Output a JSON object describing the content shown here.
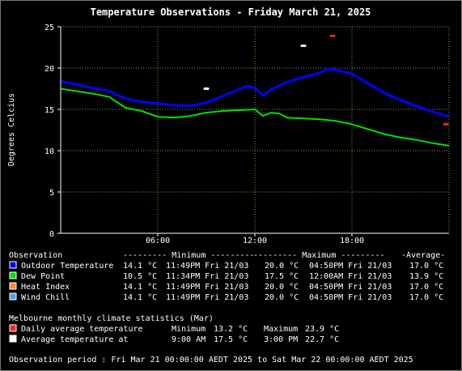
{
  "colors": {
    "background": "#000000",
    "grid": "#8a9a30",
    "outdoor": "#0000ff",
    "dew": "#00e000",
    "heat": "#ff8c1a",
    "wind": "#4fa3e0",
    "climate_avg": "#ff2020",
    "climate_daily": "#ffffff"
  },
  "chart_data": {
    "type": "line",
    "title": "Temperature Observations - Friday March 21, 2025",
    "ylabel": "Degrees Celcius",
    "xlabel": "",
    "ylim": [
      0,
      25
    ],
    "xlim_hours": [
      0,
      24
    ],
    "yticks": [
      0,
      5,
      10,
      15,
      20,
      25
    ],
    "xticks": [
      {
        "h": 6,
        "label": "06:00"
      },
      {
        "h": 12,
        "label": "12:00"
      },
      {
        "h": 18,
        "label": "18:00"
      }
    ],
    "grid": true,
    "series": [
      {
        "name": "Outdoor Temperature",
        "color": "#0000ff",
        "points": [
          [
            0,
            18.4
          ],
          [
            1,
            18.0
          ],
          [
            2,
            17.6
          ],
          [
            3,
            17.2
          ],
          [
            4,
            16.3
          ],
          [
            5,
            15.9
          ],
          [
            6,
            15.7
          ],
          [
            7,
            15.5
          ],
          [
            8,
            15.4
          ],
          [
            9,
            15.8
          ],
          [
            10,
            16.6
          ],
          [
            11,
            17.4
          ],
          [
            11.5,
            17.8
          ],
          [
            12,
            17.6
          ],
          [
            12.5,
            16.7
          ],
          [
            13,
            17.4
          ],
          [
            14,
            18.3
          ],
          [
            15,
            18.9
          ],
          [
            16,
            19.4
          ],
          [
            16.5,
            19.9
          ],
          [
            17,
            19.8
          ],
          [
            17.5,
            19.5
          ],
          [
            18,
            19.3
          ],
          [
            19,
            18.1
          ],
          [
            20,
            17.0
          ],
          [
            21,
            16.1
          ],
          [
            22,
            15.4
          ],
          [
            23,
            14.7
          ],
          [
            24,
            14.1
          ]
        ]
      },
      {
        "name": "Dew Point",
        "color": "#00e000",
        "points": [
          [
            0,
            17.5
          ],
          [
            1,
            17.2
          ],
          [
            2,
            16.9
          ],
          [
            3,
            16.5
          ],
          [
            4,
            15.2
          ],
          [
            5,
            14.8
          ],
          [
            6,
            14.1
          ],
          [
            7,
            14.0
          ],
          [
            8,
            14.2
          ],
          [
            9,
            14.6
          ],
          [
            10,
            14.8
          ],
          [
            11,
            14.9
          ],
          [
            12,
            15.0
          ],
          [
            12.5,
            14.2
          ],
          [
            13,
            14.6
          ],
          [
            13.5,
            14.5
          ],
          [
            14,
            14.0
          ],
          [
            15,
            13.9
          ],
          [
            16,
            13.8
          ],
          [
            17,
            13.6
          ],
          [
            18,
            13.2
          ],
          [
            19,
            12.6
          ],
          [
            20,
            12.0
          ],
          [
            21,
            11.6
          ],
          [
            22,
            11.3
          ],
          [
            23,
            10.9
          ],
          [
            24,
            10.6
          ]
        ]
      }
    ],
    "markers": [
      {
        "label": "Daily average temperature",
        "color": "#ff2020",
        "points": [
          [
            16.8,
            23.9
          ],
          [
            23.8,
            13.2
          ]
        ]
      },
      {
        "label": "Average temperature at",
        "color": "#ffffff",
        "points": [
          [
            9.0,
            17.5
          ],
          [
            15.0,
            22.7
          ]
        ]
      }
    ]
  },
  "table": {
    "header": [
      "Observation",
      "--------- Minimum ---------",
      "--------- Maximum ---------",
      "-Average-"
    ],
    "rows": [
      {
        "name": "Outdoor Temperature",
        "color": "#0000ff",
        "min": "14.1 °C",
        "min_time": "11:49PM Fri 21/03",
        "max": "20.0 °C",
        "max_time": "04:50PM Fri 21/03",
        "avg": "17.0 °C"
      },
      {
        "name": "Dew Point",
        "color": "#00e000",
        "min": "10.5 °C",
        "min_time": "11:34PM Fri 21/03",
        "max": "17.5 °C",
        "max_time": "12:00AM Fri 21/03",
        "avg": "13.9 °C"
      },
      {
        "name": "Heat Index",
        "color": "#ff8c1a",
        "min": "14.1 °C",
        "min_time": "11:49PM Fri 21/03",
        "max": "20.0 °C",
        "max_time": "04:50PM Fri 21/03",
        "avg": "17.0 °C"
      },
      {
        "name": "Wind Chill",
        "color": "#4fa3e0",
        "min": "14.1 °C",
        "min_time": "11:49PM Fri 21/03",
        "max": "20.0 °C",
        "max_time": "04:50PM Fri 21/03",
        "avg": "17.0 °C"
      }
    ]
  },
  "climate": {
    "title": "Melbourne monthly climate statistics (Mar)",
    "rows": [
      {
        "label": "Daily average temperature",
        "color": "#ff2020",
        "a_label": "Minimum",
        "a_value": "13.2 °C",
        "b_label": "Maximum",
        "b_value": "23.9 °C"
      },
      {
        "label": "Average temperature at",
        "color": "#ffffff",
        "a_label": "9:00 AM",
        "a_value": "17.5 °C",
        "b_label": "3:00 PM",
        "b_value": "22.7 °C"
      }
    ]
  },
  "footer": {
    "period": "Observation period : Fri Mar 21 00:00:00 AEDT 2025 to Sat Mar 22 00:00:00 AEDT 2025"
  }
}
